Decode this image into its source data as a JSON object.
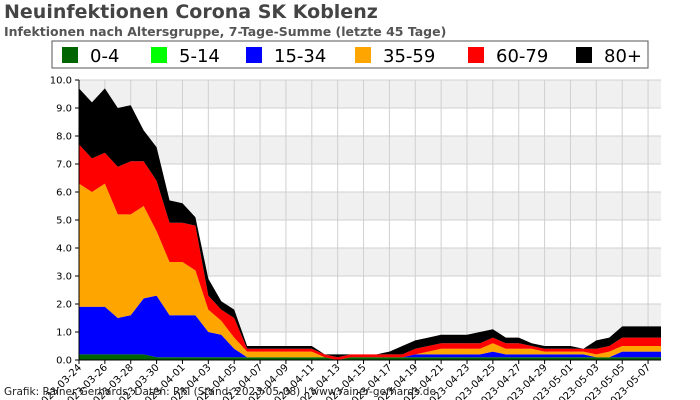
{
  "page": {
    "title": "Neuinfektionen Corona SK Koblenz",
    "subtitle": "Infektionen nach Altersgruppe, 7-Tage-Summe (letzte 45 Tage)",
    "credit": "Grafik: Rainer Gerhards, Daten: RKI (Stand: 2023-05-08) | www.rainer-gerhards.de"
  },
  "chart_data": {
    "type": "area",
    "stacked": true,
    "title": "Neuinfektionen Corona SK Koblenz",
    "subtitle": "Infektionen nach Altersgruppe, 7-Tage-Summe (letzte 45 Tage)",
    "legend_position": "top",
    "ylim": [
      0,
      10
    ],
    "y_ticks": [
      "0.0",
      "1.0",
      "2.0",
      "3.0",
      "4.0",
      "5.0",
      "6.0",
      "7.0",
      "8.0",
      "9.0",
      "10.0"
    ],
    "grid": true,
    "x": [
      "2023-03-24",
      "2023-03-25",
      "2023-03-26",
      "2023-03-27",
      "2023-03-28",
      "2023-03-29",
      "2023-03-30",
      "2023-03-31",
      "2023-04-01",
      "2023-04-02",
      "2023-04-03",
      "2023-04-04",
      "2023-04-05",
      "2023-04-06",
      "2023-04-07",
      "2023-04-08",
      "2023-04-09",
      "2023-04-10",
      "2023-04-11",
      "2023-04-12",
      "2023-04-13",
      "2023-04-14",
      "2023-04-15",
      "2023-04-16",
      "2023-04-17",
      "2023-04-18",
      "2023-04-19",
      "2023-04-20",
      "2023-04-21",
      "2023-04-22",
      "2023-04-23",
      "2023-04-24",
      "2023-04-25",
      "2023-04-26",
      "2023-04-27",
      "2023-04-28",
      "2023-04-29",
      "2023-04-30",
      "2023-05-01",
      "2023-05-02",
      "2023-05-03",
      "2023-05-04",
      "2023-05-05",
      "2023-05-06",
      "2023-05-07",
      "2023-05-08"
    ],
    "x_tick_labels": [
      "2023-03-24",
      "2023-03-26",
      "2023-03-28",
      "2023-03-30",
      "2023-04-01",
      "2023-04-03",
      "2023-04-05",
      "2023-04-07",
      "2023-04-09",
      "2023-04-11",
      "2023-04-13",
      "2023-04-15",
      "2023-04-17",
      "2023-04-19",
      "2023-04-21",
      "2023-04-23",
      "2023-04-25",
      "2023-04-27",
      "2023-04-29",
      "2023-05-01",
      "2023-05-03",
      "2023-05-05",
      "2023-05-07"
    ],
    "series": [
      {
        "name": "0-4",
        "color": "#006400",
        "values": [
          0.2,
          0.2,
          0.2,
          0.2,
          0.2,
          0.2,
          0.1,
          0.1,
          0.1,
          0.1,
          0.1,
          0.1,
          0.1,
          0.1,
          0.1,
          0.1,
          0.1,
          0.1,
          0.1,
          0.1,
          0.0,
          0.1,
          0.1,
          0.1,
          0.1,
          0.1,
          0.1,
          0.1,
          0.1,
          0.1,
          0.1,
          0.1,
          0.1,
          0.1,
          0.1,
          0.1,
          0.1,
          0.1,
          0.1,
          0.1,
          0.1,
          0.1,
          0.1,
          0.1,
          0.1,
          0.1
        ]
      },
      {
        "name": "5-14",
        "color": "#00ff00",
        "values": [
          0,
          0,
          0,
          0,
          0,
          0,
          0,
          0,
          0,
          0,
          0,
          0,
          0,
          0,
          0,
          0,
          0,
          0,
          0,
          0,
          0,
          0,
          0,
          0,
          0,
          0,
          0,
          0,
          0,
          0,
          0,
          0,
          0,
          0,
          0,
          0,
          0,
          0,
          0,
          0,
          0,
          0,
          0,
          0,
          0,
          0
        ]
      },
      {
        "name": "15-34",
        "color": "#0000ff",
        "values": [
          1.7,
          1.7,
          1.7,
          1.3,
          1.4,
          2.0,
          2.2,
          1.5,
          1.5,
          1.5,
          0.9,
          0.8,
          0.3,
          0.0,
          0.0,
          0.0,
          0.0,
          0.0,
          0.0,
          0.0,
          0.0,
          0.0,
          0.0,
          0.0,
          0.0,
          0.0,
          0.1,
          0.1,
          0.1,
          0.1,
          0.1,
          0.1,
          0.2,
          0.1,
          0.1,
          0.1,
          0.1,
          0.1,
          0.1,
          0.1,
          0.0,
          0.0,
          0.2,
          0.2,
          0.2,
          0.2
        ]
      },
      {
        "name": "35-59",
        "color": "#ffa500",
        "values": [
          4.4,
          4.1,
          4.4,
          3.7,
          3.6,
          3.3,
          2.3,
          1.9,
          1.9,
          1.6,
          0.8,
          0.5,
          0.4,
          0.2,
          0.2,
          0.2,
          0.2,
          0.2,
          0.2,
          0.0,
          0.0,
          0.0,
          0.0,
          0.0,
          0.0,
          0.0,
          0.0,
          0.1,
          0.2,
          0.2,
          0.2,
          0.2,
          0.3,
          0.2,
          0.2,
          0.2,
          0.1,
          0.1,
          0.1,
          0.1,
          0.1,
          0.2,
          0.2,
          0.2,
          0.2,
          0.2
        ]
      },
      {
        "name": "60-79",
        "color": "#ff0000",
        "values": [
          1.4,
          1.2,
          1.1,
          1.7,
          1.9,
          1.6,
          1.8,
          1.4,
          1.4,
          1.6,
          0.5,
          0.4,
          0.7,
          0.1,
          0.1,
          0.1,
          0.1,
          0.1,
          0.1,
          0.1,
          0.1,
          0.1,
          0.1,
          0.1,
          0.1,
          0.1,
          0.2,
          0.2,
          0.2,
          0.2,
          0.2,
          0.2,
          0.2,
          0.2,
          0.2,
          0.1,
          0.1,
          0.1,
          0.1,
          0.1,
          0.2,
          0.2,
          0.3,
          0.3,
          0.3,
          0.3
        ]
      },
      {
        "name": "80+",
        "color": "#000000",
        "values": [
          2.0,
          2.0,
          2.3,
          2.1,
          2.0,
          1.1,
          1.2,
          0.8,
          0.7,
          0.3,
          0.6,
          0.3,
          0.3,
          0.1,
          0.1,
          0.1,
          0.1,
          0.1,
          0.1,
          0.0,
          0.1,
          0.0,
          0.0,
          0.0,
          0.1,
          0.3,
          0.3,
          0.3,
          0.3,
          0.3,
          0.3,
          0.4,
          0.3,
          0.2,
          0.2,
          0.1,
          0.1,
          0.1,
          0.1,
          0.0,
          0.3,
          0.3,
          0.4,
          0.4,
          0.4,
          0.4
        ]
      }
    ]
  }
}
